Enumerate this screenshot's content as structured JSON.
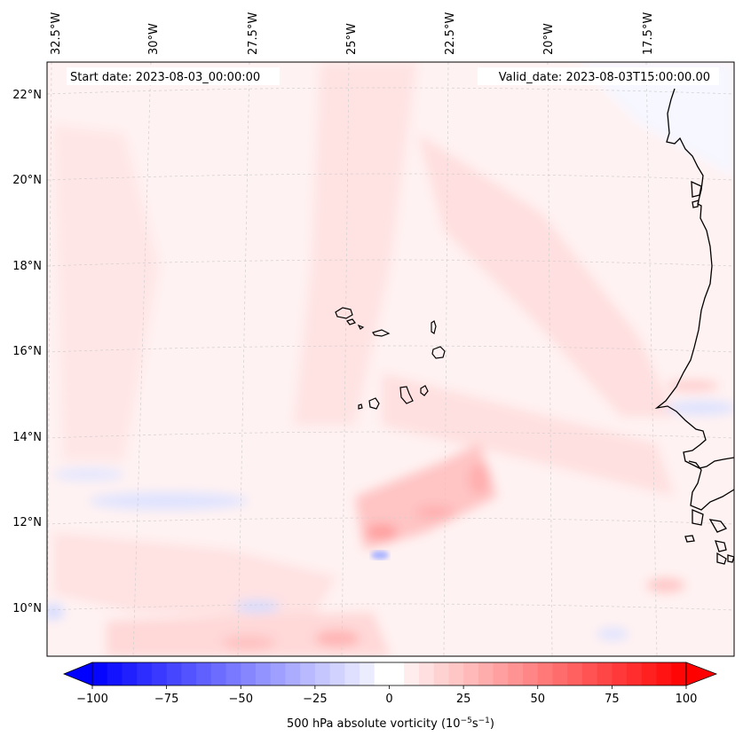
{
  "map": {
    "start_date": "Start date: 2023-08-03_00:00:00",
    "valid_date": "Valid_date: 2023-08-03T15:00:00.00",
    "lon_labels": [
      "32.5°W",
      "30°W",
      "27.5°W",
      "25°W",
      "22.5°W",
      "20°W",
      "17.5°W"
    ],
    "lat_labels": [
      "22°N",
      "20°N",
      "18°N",
      "16°N",
      "14°N",
      "12°N",
      "10°N"
    ],
    "field": "500 hPa absolute vorticity",
    "region": "Cabo Verde and West African coast"
  },
  "colorbar": {
    "label_main": "500 hPa absolute vorticity (10",
    "label_exp1": "−5",
    "label_mid": "s",
    "label_exp2": "−1",
    "label_end": ")",
    "ticks": [
      "−100",
      "−75",
      "−50",
      "−25",
      "0",
      "25",
      "50",
      "75",
      "100"
    ],
    "min": -100,
    "max": 100,
    "low_color": "#0000ff",
    "mid_color": "#ffffff",
    "high_color": "#ff0000"
  }
}
